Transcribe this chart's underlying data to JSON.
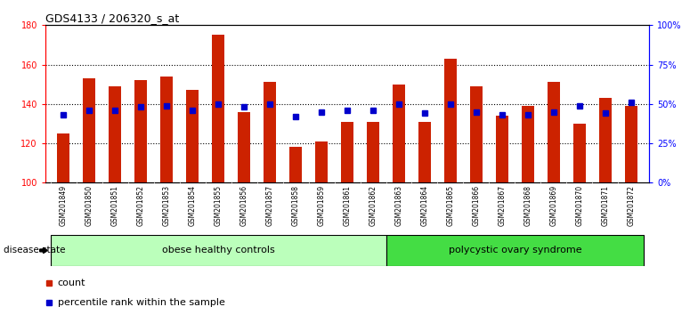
{
  "title": "GDS4133 / 206320_s_at",
  "samples": [
    "GSM201849",
    "GSM201850",
    "GSM201851",
    "GSM201852",
    "GSM201853",
    "GSM201854",
    "GSM201855",
    "GSM201856",
    "GSM201857",
    "GSM201858",
    "GSM201859",
    "GSM201861",
    "GSM201862",
    "GSM201863",
    "GSM201864",
    "GSM201865",
    "GSM201866",
    "GSM201867",
    "GSM201868",
    "GSM201869",
    "GSM201870",
    "GSM201871",
    "GSM201872"
  ],
  "counts": [
    125,
    153,
    149,
    152,
    154,
    147,
    175,
    136,
    151,
    118,
    121,
    131,
    131,
    150,
    131,
    163,
    149,
    134,
    139,
    151,
    130,
    143,
    139
  ],
  "percentile_ranks": [
    43,
    46,
    46,
    48,
    49,
    46,
    50,
    48,
    50,
    42,
    45,
    46,
    46,
    50,
    44,
    50,
    45,
    43,
    43,
    45,
    49,
    44,
    51
  ],
  "group1_label": "obese healthy controls",
  "group2_label": "polycystic ovary syndrome",
  "group1_count": 13,
  "group2_count": 10,
  "bar_color": "#cc2200",
  "dot_color": "#0000cc",
  "y_min": 100,
  "y_max": 180,
  "y_ticks": [
    100,
    120,
    140,
    160,
    180
  ],
  "background_color": "#ffffff",
  "tick_bg_color": "#cccccc",
  "group1_bg": "#bbffbb",
  "group2_bg": "#44dd44",
  "bar_width": 0.5
}
